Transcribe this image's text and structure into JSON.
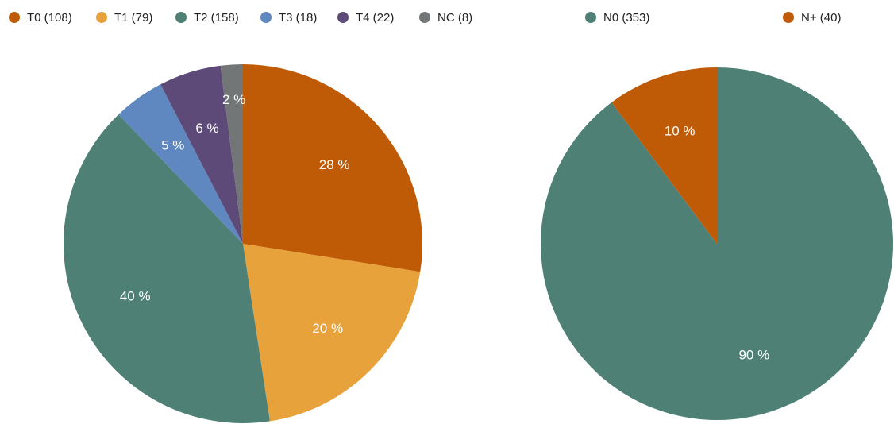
{
  "chart_data": [
    {
      "type": "pie",
      "categories": [
        "T0 (108)",
        "T1 (79)",
        "T2 (158)",
        "T3 (18)",
        "T4 (22)",
        "NC (8)"
      ],
      "values": [
        27.5,
        20.1,
        40.2,
        4.6,
        5.6,
        2.0
      ],
      "value_labels": [
        "28 %",
        "20 %",
        "40 %",
        "5 %",
        "6 %",
        "2 %"
      ],
      "colors": [
        "#bf5b06",
        "#e8a23c",
        "#4e8076",
        "#5f88c0",
        "#5e4a78",
        "#727676"
      ],
      "legend": "top"
    },
    {
      "type": "pie",
      "categories": [
        "N0 (353)",
        "N+ (40)"
      ],
      "values": [
        89.8,
        10.2
      ],
      "value_labels": [
        "90 %",
        "10 %"
      ],
      "colors": [
        "#4e8076",
        "#bf5b06"
      ],
      "legend": "top"
    }
  ]
}
